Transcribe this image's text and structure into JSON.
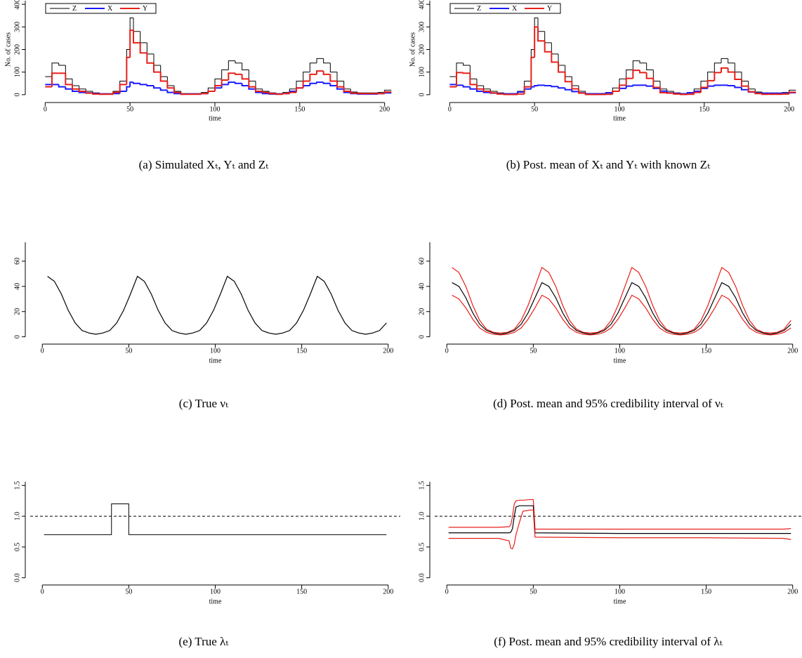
{
  "chart_data": [
    {
      "type": "line",
      "step": true,
      "caption": "(a) Simulated Xₜ, Yₜ and Zₜ",
      "xlabel": "time",
      "ylabel": "No. of cases",
      "legend": "top-left",
      "xlim": [
        -8,
        208
      ],
      "ylim": [
        -16,
        416
      ],
      "xticks": [
        0,
        50,
        100,
        150,
        200
      ],
      "yticks": [
        0,
        100,
        200,
        300,
        400
      ],
      "x": [
        0,
        4,
        8,
        12,
        16,
        20,
        24,
        28,
        32,
        36,
        40,
        44,
        48,
        50,
        52,
        56,
        60,
        64,
        68,
        72,
        76,
        80,
        84,
        88,
        92,
        96,
        100,
        104,
        108,
        112,
        116,
        120,
        124,
        128,
        132,
        136,
        140,
        144,
        148,
        152,
        156,
        160,
        164,
        168,
        172,
        176,
        180,
        184,
        188,
        192,
        196,
        200
      ],
      "series": [
        {
          "name": "Z",
          "color": "#000000",
          "width": 1,
          "values": [
            80,
            140,
            130,
            70,
            40,
            25,
            15,
            8,
            5,
            5,
            15,
            60,
            200,
            340,
            280,
            230,
            180,
            130,
            80,
            40,
            15,
            5,
            5,
            5,
            10,
            30,
            70,
            110,
            150,
            140,
            110,
            60,
            25,
            15,
            8,
            5,
            10,
            25,
            60,
            100,
            140,
            160,
            140,
            100,
            60,
            25,
            12,
            8,
            8,
            8,
            10,
            20
          ]
        },
        {
          "name": "X",
          "color": "#1a1aff",
          "width": 2,
          "values": [
            45,
            45,
            35,
            25,
            15,
            10,
            8,
            5,
            3,
            3,
            5,
            15,
            35,
            55,
            50,
            45,
            40,
            30,
            20,
            10,
            5,
            3,
            3,
            3,
            5,
            15,
            30,
            45,
            55,
            50,
            40,
            25,
            10,
            5,
            3,
            3,
            5,
            15,
            30,
            40,
            50,
            55,
            50,
            40,
            25,
            10,
            5,
            3,
            3,
            3,
            5,
            8
          ]
        },
        {
          "name": "Y",
          "color": "#e8201a",
          "width": 2,
          "values": [
            35,
            95,
            95,
            45,
            25,
            15,
            7,
            3,
            2,
            2,
            10,
            45,
            165,
            285,
            230,
            185,
            140,
            100,
            60,
            30,
            10,
            2,
            2,
            2,
            5,
            15,
            40,
            65,
            95,
            90,
            70,
            35,
            15,
            10,
            5,
            2,
            5,
            10,
            30,
            60,
            90,
            105,
            90,
            60,
            35,
            15,
            7,
            5,
            5,
            5,
            5,
            12
          ]
        }
      ]
    },
    {
      "type": "line",
      "step": true,
      "caption": "(b) Post. mean of Xₜ and Yₜ with known Zₜ",
      "xlabel": "time",
      "ylabel": "No. of cases",
      "legend": "top-left",
      "xlim": [
        -8,
        208
      ],
      "ylim": [
        -16,
        416
      ],
      "xticks": [
        0,
        50,
        100,
        150,
        200
      ],
      "yticks": [
        0,
        100,
        200,
        300,
        400
      ],
      "x": [
        0,
        4,
        8,
        12,
        16,
        20,
        24,
        28,
        32,
        36,
        40,
        44,
        48,
        50,
        52,
        56,
        60,
        64,
        68,
        72,
        76,
        80,
        84,
        88,
        92,
        96,
        100,
        104,
        108,
        112,
        116,
        120,
        124,
        128,
        132,
        136,
        140,
        144,
        148,
        152,
        156,
        160,
        164,
        168,
        172,
        176,
        180,
        184,
        188,
        192,
        196,
        200
      ],
      "series": [
        {
          "name": "Z",
          "color": "#000000",
          "width": 1,
          "values": [
            80,
            140,
            130,
            70,
            40,
            25,
            15,
            8,
            5,
            5,
            15,
            60,
            200,
            340,
            280,
            230,
            180,
            130,
            80,
            40,
            15,
            5,
            5,
            5,
            10,
            30,
            70,
            110,
            150,
            140,
            110,
            60,
            25,
            15,
            8,
            5,
            10,
            25,
            60,
            100,
            140,
            160,
            140,
            100,
            60,
            25,
            12,
            8,
            8,
            8,
            10,
            20
          ]
        },
        {
          "name": "X",
          "color": "#1a1aff",
          "width": 2,
          "values": [
            45,
            42,
            35,
            25,
            15,
            10,
            7,
            5,
            4,
            4,
            12,
            25,
            35,
            40,
            42,
            40,
            36,
            30,
            22,
            14,
            8,
            4,
            4,
            4,
            8,
            15,
            28,
            38,
            42,
            42,
            38,
            28,
            16,
            8,
            5,
            4,
            8,
            15,
            28,
            38,
            42,
            42,
            40,
            32,
            22,
            12,
            7,
            6,
            6,
            6,
            7,
            9
          ]
        },
        {
          "name": "Y",
          "color": "#e8201a",
          "width": 2,
          "values": [
            35,
            98,
            95,
            45,
            25,
            15,
            8,
            3,
            1,
            1,
            3,
            35,
            165,
            300,
            238,
            190,
            144,
            100,
            58,
            26,
            7,
            1,
            1,
            1,
            2,
            15,
            42,
            72,
            108,
            98,
            72,
            32,
            9,
            7,
            3,
            1,
            2,
            10,
            32,
            62,
            98,
            118,
            100,
            68,
            38,
            13,
            5,
            2,
            2,
            2,
            3,
            11
          ]
        }
      ]
    },
    {
      "type": "line",
      "caption": "(c) True νₜ",
      "xlabel": "time",
      "xlim": [
        -7,
        207
      ],
      "ylim": [
        -3,
        75
      ],
      "xticks": [
        0,
        50,
        100,
        150,
        200
      ],
      "yticks": [
        0,
        20,
        40,
        60
      ],
      "x": [
        3,
        7,
        11,
        15,
        19,
        23,
        27,
        31,
        35,
        39,
        43,
        47,
        51,
        55,
        59,
        63,
        67,
        71,
        75,
        79,
        83,
        87,
        91,
        95,
        99,
        103,
        107,
        111,
        115,
        119,
        123,
        127,
        131,
        135,
        139,
        143,
        147,
        151,
        155,
        159,
        163,
        167,
        171,
        175,
        179,
        183,
        187,
        191,
        195,
        199
      ],
      "series": [
        {
          "name": "ν",
          "color": "#000000",
          "width": 1.2,
          "values": [
            48,
            44,
            34,
            21,
            11,
            5,
            3,
            2,
            3,
            5,
            11,
            21,
            34,
            48,
            44,
            34,
            21,
            11,
            5,
            3,
            2,
            3,
            5,
            11,
            21,
            34,
            48,
            44,
            34,
            21,
            11,
            5,
            3,
            2,
            3,
            5,
            11,
            21,
            34,
            48,
            44,
            34,
            21,
            11,
            5,
            3,
            2,
            3,
            5,
            11
          ]
        }
      ]
    },
    {
      "type": "line",
      "caption": "(d) Post. mean and 95% credibility interval of νₜ",
      "xlabel": "time",
      "xlim": [
        -7,
        207
      ],
      "ylim": [
        -3,
        75
      ],
      "xticks": [
        0,
        50,
        100,
        150,
        200
      ],
      "yticks": [
        0,
        20,
        40,
        60
      ],
      "x": [
        3,
        7,
        11,
        15,
        19,
        23,
        27,
        31,
        35,
        39,
        43,
        47,
        51,
        55,
        59,
        63,
        67,
        71,
        75,
        79,
        83,
        87,
        91,
        95,
        99,
        103,
        107,
        111,
        115,
        119,
        123,
        127,
        131,
        135,
        139,
        143,
        147,
        151,
        155,
        159,
        163,
        167,
        171,
        175,
        179,
        183,
        187,
        191,
        195,
        199
      ],
      "series": [
        {
          "name": "upper",
          "color": "#e8201a",
          "width": 1.2,
          "values": [
            55,
            51,
            40,
            25,
            13,
            6,
            3.5,
            3,
            3.5,
            6,
            13,
            25,
            40,
            55,
            51,
            40,
            25,
            13,
            6,
            3.5,
            3,
            3.5,
            6,
            13,
            25,
            40,
            55,
            51,
            40,
            25,
            13,
            6,
            3.5,
            3,
            3.5,
            6,
            13,
            25,
            40,
            55,
            51,
            40,
            25,
            13,
            6,
            3.5,
            3,
            3.5,
            6,
            13
          ]
        },
        {
          "name": "mean",
          "color": "#000000",
          "width": 1.2,
          "values": [
            43,
            40,
            31,
            19,
            10,
            5,
            3,
            2,
            3,
            5,
            10,
            19,
            31,
            43,
            40,
            31,
            19,
            10,
            5,
            3,
            2,
            3,
            5,
            10,
            19,
            31,
            43,
            40,
            31,
            19,
            10,
            5,
            3,
            2,
            3,
            5,
            10,
            19,
            31,
            43,
            40,
            31,
            19,
            10,
            5,
            3,
            2,
            3,
            5,
            10
          ]
        },
        {
          "name": "lower",
          "color": "#e8201a",
          "width": 1.2,
          "values": [
            33,
            30,
            23,
            14,
            7,
            3.5,
            2,
            1.5,
            2,
            3.5,
            7,
            14,
            23,
            33,
            30,
            23,
            14,
            7,
            3.5,
            2,
            1.5,
            2,
            3.5,
            7,
            14,
            23,
            33,
            30,
            23,
            14,
            7,
            3.5,
            2,
            1.5,
            2,
            3.5,
            7,
            14,
            23,
            33,
            30,
            23,
            14,
            7,
            3.5,
            2,
            1.5,
            2,
            3.5,
            7
          ]
        }
      ]
    },
    {
      "type": "line",
      "caption": "(e) True λₜ",
      "xlabel": "time",
      "hline": 1,
      "xlim": [
        -7,
        207
      ],
      "ylim": [
        -0.06,
        1.56
      ],
      "xticks": [
        0,
        50,
        100,
        150,
        200
      ],
      "yticks": [
        {
          "value": 0,
          "label": "0.0"
        },
        0.5,
        {
          "value": 1,
          "label": "1.0"
        },
        1.5
      ],
      "x": [
        1,
        40,
        40,
        50,
        50,
        199
      ],
      "series": [
        {
          "name": "λ",
          "color": "#000000",
          "width": 1,
          "values": [
            0.7,
            0.7,
            1.2,
            1.2,
            0.7,
            0.7
          ]
        }
      ]
    },
    {
      "type": "line",
      "caption": "(f) Post. mean and 95% credibility interval of λₜ",
      "xlabel": "time",
      "hline": 1,
      "xlim": [
        -7,
        207
      ],
      "ylim": [
        -0.06,
        1.56
      ],
      "xticks": [
        0,
        50,
        100,
        150,
        200
      ],
      "yticks": [
        {
          "value": 0,
          "label": "0.0"
        },
        0.5,
        {
          "value": 1,
          "label": "1.0"
        },
        1.5
      ],
      "x": [
        1,
        30,
        36,
        37,
        38,
        39,
        40,
        42,
        44,
        48,
        50,
        51,
        100,
        150,
        195,
        199
      ],
      "series": [
        {
          "name": "upper",
          "color": "#e8201a",
          "width": 1.2,
          "values": [
            0.82,
            0.82,
            0.83,
            0.86,
            1.0,
            1.2,
            1.25,
            1.26,
            1.26,
            1.27,
            1.27,
            0.79,
            0.79,
            0.79,
            0.79,
            0.8
          ]
        },
        {
          "name": "mean",
          "color": "#000000",
          "width": 1.2,
          "values": [
            0.73,
            0.73,
            0.73,
            0.74,
            0.8,
            1.0,
            1.15,
            1.17,
            1.17,
            1.17,
            1.17,
            0.73,
            0.72,
            0.72,
            0.72,
            0.72
          ]
        },
        {
          "name": "lower",
          "color": "#e8201a",
          "width": 1.2,
          "values": [
            0.64,
            0.64,
            0.6,
            0.48,
            0.47,
            0.55,
            0.7,
            0.9,
            1.08,
            1.1,
            1.1,
            0.66,
            0.65,
            0.65,
            0.64,
            0.62
          ]
        }
      ]
    }
  ]
}
